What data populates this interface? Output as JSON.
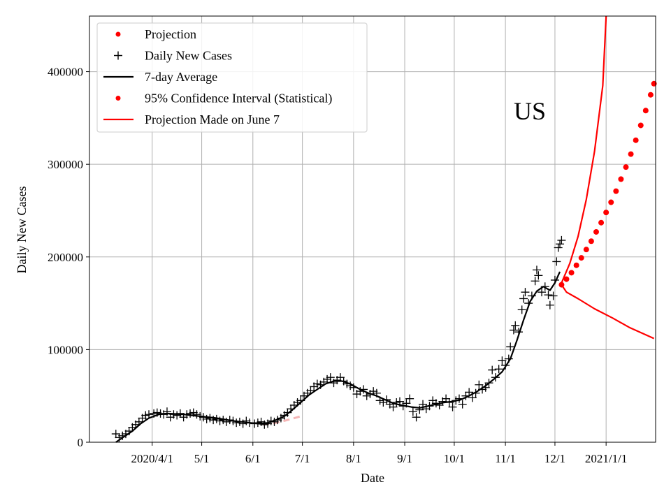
{
  "chart_data": {
    "type": "line",
    "title": "US",
    "xlabel": "Date",
    "ylabel": "Daily New Cases",
    "grid": true,
    "legend_position": "upper-left",
    "x_axis": {
      "type": "date",
      "range": [
        "2020-02-23",
        "2021-01-31"
      ],
      "ticks": [
        {
          "date": "2020-04-01",
          "label": "2020/4/1"
        },
        {
          "date": "2020-05-01",
          "label": "5/1"
        },
        {
          "date": "2020-06-01",
          "label": "6/1"
        },
        {
          "date": "2020-07-01",
          "label": "7/1"
        },
        {
          "date": "2020-08-01",
          "label": "8/1"
        },
        {
          "date": "2020-09-01",
          "label": "9/1"
        },
        {
          "date": "2020-10-01",
          "label": "10/1"
        },
        {
          "date": "2020-11-01",
          "label": "11/1"
        },
        {
          "date": "2020-12-01",
          "label": "12/1"
        },
        {
          "date": "2021-01-01",
          "label": "2021/1/1"
        }
      ]
    },
    "y_axis": {
      "range": [
        0,
        460000
      ],
      "ticks": [
        {
          "value": 0,
          "label": "0"
        },
        {
          "value": 100000,
          "label": "100000"
        },
        {
          "value": 200000,
          "label": "200000"
        },
        {
          "value": 300000,
          "label": "300000"
        },
        {
          "value": 400000,
          "label": "400000"
        }
      ]
    },
    "legend": [
      {
        "label": "Projection",
        "marker": "dot",
        "color": "#ff0000"
      },
      {
        "label": "Daily New Cases",
        "marker": "plus",
        "color": "#000000"
      },
      {
        "label": "7-day Average",
        "marker": "line",
        "color": "#000000"
      },
      {
        "label": "95% Confidence Interval (Statistical)",
        "marker": "dot",
        "color": "#ff0000"
      },
      {
        "label": "Projection Made on June 7",
        "marker": "line",
        "color": "#ff0000"
      }
    ],
    "series": [
      {
        "name": "Daily New Cases",
        "style": "plus",
        "color": "#000000",
        "points": [
          [
            "2020-03-10",
            9000
          ],
          [
            "2020-03-12",
            5000
          ],
          [
            "2020-03-14",
            7000
          ],
          [
            "2020-03-16",
            9000
          ],
          [
            "2020-03-18",
            12000
          ],
          [
            "2020-03-20",
            16000
          ],
          [
            "2020-03-22",
            19000
          ],
          [
            "2020-03-24",
            22000
          ],
          [
            "2020-03-26",
            26000
          ],
          [
            "2020-03-28",
            29000
          ],
          [
            "2020-03-30",
            30000
          ],
          [
            "2020-04-02",
            31000
          ],
          [
            "2020-04-04",
            32000
          ],
          [
            "2020-04-06",
            31000
          ],
          [
            "2020-04-08",
            30000
          ],
          [
            "2020-04-10",
            33000
          ],
          [
            "2020-04-12",
            27000
          ],
          [
            "2020-04-14",
            30000
          ],
          [
            "2020-04-16",
            29000
          ],
          [
            "2020-04-18",
            31000
          ],
          [
            "2020-04-20",
            27000
          ],
          [
            "2020-04-22",
            30000
          ],
          [
            "2020-04-24",
            31000
          ],
          [
            "2020-04-26",
            32000
          ],
          [
            "2020-04-28",
            30000
          ],
          [
            "2020-04-30",
            28000
          ],
          [
            "2020-05-02",
            27000
          ],
          [
            "2020-05-04",
            25000
          ],
          [
            "2020-05-06",
            26000
          ],
          [
            "2020-05-08",
            24000
          ],
          [
            "2020-05-10",
            25000
          ],
          [
            "2020-05-12",
            23000
          ],
          [
            "2020-05-14",
            24000
          ],
          [
            "2020-05-16",
            22000
          ],
          [
            "2020-05-18",
            24000
          ],
          [
            "2020-05-20",
            23000
          ],
          [
            "2020-05-22",
            21000
          ],
          [
            "2020-05-24",
            22000
          ],
          [
            "2020-05-26",
            20000
          ],
          [
            "2020-05-28",
            23000
          ],
          [
            "2020-05-30",
            21000
          ],
          [
            "2020-06-02",
            20000
          ],
          [
            "2020-06-04",
            21000
          ],
          [
            "2020-06-06",
            22000
          ],
          [
            "2020-06-08",
            19000
          ],
          [
            "2020-06-10",
            20000
          ],
          [
            "2020-06-12",
            23000
          ],
          [
            "2020-06-14",
            22000
          ],
          [
            "2020-06-16",
            24000
          ],
          [
            "2020-06-18",
            26000
          ],
          [
            "2020-06-20",
            29000
          ],
          [
            "2020-06-22",
            32000
          ],
          [
            "2020-06-24",
            36000
          ],
          [
            "2020-06-26",
            40000
          ],
          [
            "2020-06-28",
            43000
          ],
          [
            "2020-06-30",
            45000
          ],
          [
            "2020-07-02",
            50000
          ],
          [
            "2020-07-04",
            53000
          ],
          [
            "2020-07-06",
            56000
          ],
          [
            "2020-07-08",
            60000
          ],
          [
            "2020-07-10",
            63000
          ],
          [
            "2020-07-12",
            62000
          ],
          [
            "2020-07-14",
            65000
          ],
          [
            "2020-07-16",
            68000
          ],
          [
            "2020-07-18",
            70000
          ],
          [
            "2020-07-20",
            64000
          ],
          [
            "2020-07-22",
            67000
          ],
          [
            "2020-07-24",
            70000
          ],
          [
            "2020-07-26",
            66000
          ],
          [
            "2020-07-28",
            63000
          ],
          [
            "2020-07-30",
            61000
          ],
          [
            "2020-08-01",
            59000
          ],
          [
            "2020-08-03",
            52000
          ],
          [
            "2020-08-05",
            55000
          ],
          [
            "2020-08-07",
            57000
          ],
          [
            "2020-08-09",
            50000
          ],
          [
            "2020-08-11",
            52000
          ],
          [
            "2020-08-13",
            55000
          ],
          [
            "2020-08-15",
            53000
          ],
          [
            "2020-08-17",
            45000
          ],
          [
            "2020-08-19",
            43000
          ],
          [
            "2020-08-21",
            46000
          ],
          [
            "2020-08-23",
            41000
          ],
          [
            "2020-08-25",
            38000
          ],
          [
            "2020-08-27",
            43000
          ],
          [
            "2020-08-29",
            44000
          ],
          [
            "2020-08-31",
            39000
          ],
          [
            "2020-09-02",
            42000
          ],
          [
            "2020-09-04",
            47000
          ],
          [
            "2020-09-06",
            33000
          ],
          [
            "2020-09-08",
            27000
          ],
          [
            "2020-09-10",
            35000
          ],
          [
            "2020-09-12",
            41000
          ],
          [
            "2020-09-14",
            36000
          ],
          [
            "2020-09-16",
            39000
          ],
          [
            "2020-09-18",
            45000
          ],
          [
            "2020-09-20",
            42000
          ],
          [
            "2020-09-22",
            40000
          ],
          [
            "2020-09-24",
            44000
          ],
          [
            "2020-09-26",
            47000
          ],
          [
            "2020-09-28",
            43000
          ],
          [
            "2020-09-30",
            38000
          ],
          [
            "2020-10-02",
            45000
          ],
          [
            "2020-10-04",
            47000
          ],
          [
            "2020-10-06",
            41000
          ],
          [
            "2020-10-08",
            50000
          ],
          [
            "2020-10-10",
            54000
          ],
          [
            "2020-10-12",
            48000
          ],
          [
            "2020-10-14",
            53000
          ],
          [
            "2020-10-16",
            62000
          ],
          [
            "2020-10-18",
            57000
          ],
          [
            "2020-10-20",
            59000
          ],
          [
            "2020-10-22",
            64000
          ],
          [
            "2020-10-24",
            78000
          ],
          [
            "2020-10-26",
            70000
          ],
          [
            "2020-10-28",
            79000
          ],
          [
            "2020-10-30",
            88000
          ],
          [
            "2020-11-01",
            83000
          ],
          [
            "2020-11-03",
            90000
          ],
          [
            "2020-11-04",
            103000
          ],
          [
            "2020-11-06",
            121000
          ],
          [
            "2020-11-07",
            126000
          ],
          [
            "2020-11-09",
            119000
          ],
          [
            "2020-11-11",
            143000
          ],
          [
            "2020-11-12",
            155000
          ],
          [
            "2020-11-13",
            162000
          ],
          [
            "2020-11-15",
            150000
          ],
          [
            "2020-11-17",
            158000
          ],
          [
            "2020-11-19",
            174000
          ],
          [
            "2020-11-20",
            186000
          ],
          [
            "2020-11-21",
            180000
          ],
          [
            "2020-11-23",
            162000
          ],
          [
            "2020-11-25",
            168000
          ],
          [
            "2020-11-27",
            159000
          ],
          [
            "2020-11-28",
            148000
          ],
          [
            "2020-11-30",
            158000
          ],
          [
            "2020-12-01",
            175000
          ],
          [
            "2020-12-02",
            195000
          ],
          [
            "2020-12-03",
            210000
          ],
          [
            "2020-12-04",
            214000
          ],
          [
            "2020-12-05",
            218000
          ]
        ]
      },
      {
        "name": "7-day Average",
        "style": "line",
        "color": "#000000",
        "points": [
          [
            "2020-03-10",
            0
          ],
          [
            "2020-03-15",
            6000
          ],
          [
            "2020-03-20",
            12000
          ],
          [
            "2020-03-25",
            20000
          ],
          [
            "2020-03-30",
            26000
          ],
          [
            "2020-04-05",
            30000
          ],
          [
            "2020-04-10",
            31000
          ],
          [
            "2020-04-20",
            30000
          ],
          [
            "2020-04-30",
            28000
          ],
          [
            "2020-05-10",
            26000
          ],
          [
            "2020-05-20",
            23000
          ],
          [
            "2020-05-30",
            21000
          ],
          [
            "2020-06-05",
            20000
          ],
          [
            "2020-06-10",
            21000
          ],
          [
            "2020-06-15",
            24000
          ],
          [
            "2020-06-20",
            28000
          ],
          [
            "2020-06-25",
            35000
          ],
          [
            "2020-06-30",
            43000
          ],
          [
            "2020-07-05",
            51000
          ],
          [
            "2020-07-10",
            57000
          ],
          [
            "2020-07-15",
            63000
          ],
          [
            "2020-07-20",
            66000
          ],
          [
            "2020-07-25",
            66000
          ],
          [
            "2020-07-30",
            63000
          ],
          [
            "2020-08-05",
            57000
          ],
          [
            "2020-08-10",
            53000
          ],
          [
            "2020-08-15",
            50000
          ],
          [
            "2020-08-20",
            46000
          ],
          [
            "2020-08-25",
            42000
          ],
          [
            "2020-08-30",
            40000
          ],
          [
            "2020-09-05",
            38000
          ],
          [
            "2020-09-10",
            37000
          ],
          [
            "2020-09-15",
            39000
          ],
          [
            "2020-09-20",
            41000
          ],
          [
            "2020-09-25",
            43000
          ],
          [
            "2020-09-30",
            44000
          ],
          [
            "2020-10-05",
            46000
          ],
          [
            "2020-10-10",
            50000
          ],
          [
            "2020-10-15",
            55000
          ],
          [
            "2020-10-20",
            61000
          ],
          [
            "2020-10-25",
            68000
          ],
          [
            "2020-10-30",
            76000
          ],
          [
            "2020-11-04",
            90000
          ],
          [
            "2020-11-08",
            110000
          ],
          [
            "2020-11-12",
            132000
          ],
          [
            "2020-11-16",
            152000
          ],
          [
            "2020-11-20",
            163000
          ],
          [
            "2020-11-24",
            168000
          ],
          [
            "2020-11-28",
            164000
          ],
          [
            "2020-12-01",
            172000
          ],
          [
            "2020-12-04",
            184000
          ]
        ]
      },
      {
        "name": "Projection",
        "style": "dot",
        "color": "#ff0000",
        "points": [
          [
            "2020-12-05",
            170000
          ],
          [
            "2020-12-08",
            176000
          ],
          [
            "2020-12-11",
            183000
          ],
          [
            "2020-12-14",
            191000
          ],
          [
            "2020-12-17",
            199000
          ],
          [
            "2020-12-20",
            208000
          ],
          [
            "2020-12-23",
            217000
          ],
          [
            "2020-12-26",
            227000
          ],
          [
            "2020-12-29",
            237000
          ],
          [
            "2021-01-01",
            248000
          ],
          [
            "2021-01-04",
            259000
          ],
          [
            "2021-01-07",
            271000
          ],
          [
            "2021-01-10",
            284000
          ],
          [
            "2021-01-13",
            297000
          ],
          [
            "2021-01-16",
            311000
          ],
          [
            "2021-01-19",
            326000
          ],
          [
            "2021-01-22",
            342000
          ],
          [
            "2021-01-25",
            358000
          ],
          [
            "2021-01-28",
            375000
          ],
          [
            "2021-01-30",
            387000
          ]
        ]
      },
      {
        "name": "95% Confidence Interval (Statistical) upper",
        "style": "line",
        "color": "#ff0000",
        "points": [
          [
            "2020-12-05",
            172000
          ],
          [
            "2020-12-10",
            193000
          ],
          [
            "2020-12-15",
            222000
          ],
          [
            "2020-12-20",
            262000
          ],
          [
            "2020-12-25",
            314000
          ],
          [
            "2020-12-30",
            385000
          ],
          [
            "2021-01-01",
            460000
          ]
        ]
      },
      {
        "name": "95% Confidence Interval (Statistical) lower",
        "style": "line",
        "color": "#ff0000",
        "points": [
          [
            "2020-12-05",
            170000
          ],
          [
            "2020-12-08",
            162000
          ],
          [
            "2020-12-15",
            155000
          ],
          [
            "2020-12-25",
            144000
          ],
          [
            "2021-01-05",
            134000
          ],
          [
            "2021-01-15",
            124000
          ],
          [
            "2021-01-30",
            112000
          ]
        ]
      },
      {
        "name": "Projection Made on June 7",
        "style": "dashed",
        "color": "#f4b6b6",
        "points": [
          [
            "2020-06-07",
            19000
          ],
          [
            "2020-06-15",
            21000
          ],
          [
            "2020-06-22",
            24000
          ],
          [
            "2020-06-30",
            28000
          ]
        ]
      }
    ]
  }
}
